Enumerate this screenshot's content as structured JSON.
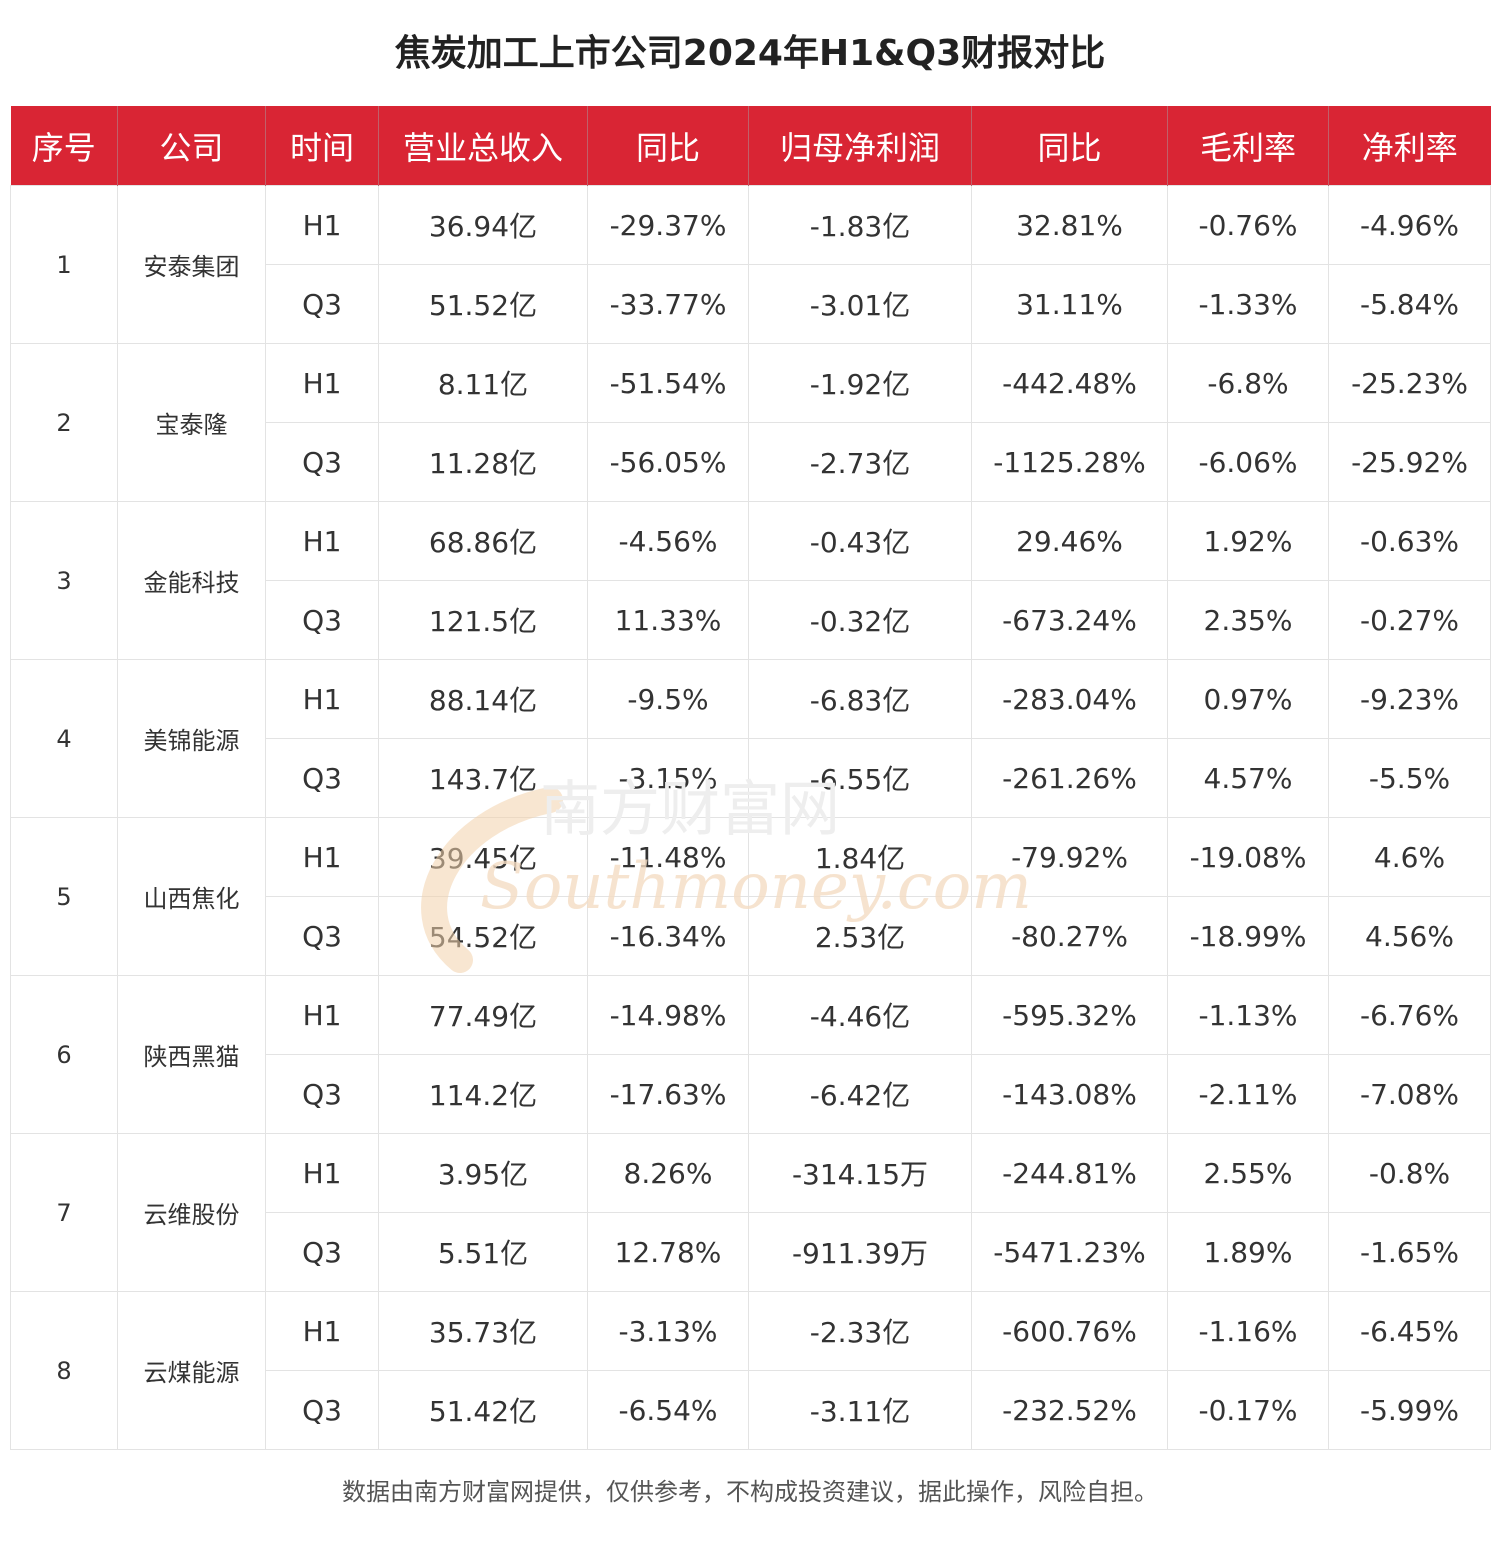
{
  "title": "焦炭加工上市公司2024年H1&Q3财报对比",
  "columns": [
    "序号",
    "公司",
    "时间",
    "营业总收入",
    "同比",
    "归母净利润",
    "同比",
    "毛利率",
    "净利率"
  ],
  "companies": [
    {
      "seq": "1",
      "name": "安泰集团",
      "rows": [
        {
          "period": "H1",
          "revenue": "36.94亿",
          "revenue_yoy": "-29.37%",
          "net_profit": "-1.83亿",
          "profit_yoy": "32.81%",
          "gross_margin": "-0.76%",
          "net_margin": "-4.96%"
        },
        {
          "period": "Q3",
          "revenue": "51.52亿",
          "revenue_yoy": "-33.77%",
          "net_profit": "-3.01亿",
          "profit_yoy": "31.11%",
          "gross_margin": "-1.33%",
          "net_margin": "-5.84%"
        }
      ]
    },
    {
      "seq": "2",
      "name": "宝泰隆",
      "rows": [
        {
          "period": "H1",
          "revenue": "8.11亿",
          "revenue_yoy": "-51.54%",
          "net_profit": "-1.92亿",
          "profit_yoy": "-442.48%",
          "gross_margin": "-6.8%",
          "net_margin": "-25.23%"
        },
        {
          "period": "Q3",
          "revenue": "11.28亿",
          "revenue_yoy": "-56.05%",
          "net_profit": "-2.73亿",
          "profit_yoy": "-1125.28%",
          "gross_margin": "-6.06%",
          "net_margin": "-25.92%"
        }
      ]
    },
    {
      "seq": "3",
      "name": "金能科技",
      "rows": [
        {
          "period": "H1",
          "revenue": "68.86亿",
          "revenue_yoy": "-4.56%",
          "net_profit": "-0.43亿",
          "profit_yoy": "29.46%",
          "gross_margin": "1.92%",
          "net_margin": "-0.63%"
        },
        {
          "period": "Q3",
          "revenue": "121.5亿",
          "revenue_yoy": "11.33%",
          "net_profit": "-0.32亿",
          "profit_yoy": "-673.24%",
          "gross_margin": "2.35%",
          "net_margin": "-0.27%"
        }
      ]
    },
    {
      "seq": "4",
      "name": "美锦能源",
      "rows": [
        {
          "period": "H1",
          "revenue": "88.14亿",
          "revenue_yoy": "-9.5%",
          "net_profit": "-6.83亿",
          "profit_yoy": "-283.04%",
          "gross_margin": "0.97%",
          "net_margin": "-9.23%"
        },
        {
          "period": "Q3",
          "revenue": "143.7亿",
          "revenue_yoy": "-3.15%",
          "net_profit": "-6.55亿",
          "profit_yoy": "-261.26%",
          "gross_margin": "4.57%",
          "net_margin": "-5.5%"
        }
      ]
    },
    {
      "seq": "5",
      "name": "山西焦化",
      "rows": [
        {
          "period": "H1",
          "revenue": "39.45亿",
          "revenue_yoy": "-11.48%",
          "net_profit": "1.84亿",
          "profit_yoy": "-79.92%",
          "gross_margin": "-19.08%",
          "net_margin": "4.6%"
        },
        {
          "period": "Q3",
          "revenue": "54.52亿",
          "revenue_yoy": "-16.34%",
          "net_profit": "2.53亿",
          "profit_yoy": "-80.27%",
          "gross_margin": "-18.99%",
          "net_margin": "4.56%"
        }
      ]
    },
    {
      "seq": "6",
      "name": "陕西黑猫",
      "rows": [
        {
          "period": "H1",
          "revenue": "77.49亿",
          "revenue_yoy": "-14.98%",
          "net_profit": "-4.46亿",
          "profit_yoy": "-595.32%",
          "gross_margin": "-1.13%",
          "net_margin": "-6.76%"
        },
        {
          "period": "Q3",
          "revenue": "114.2亿",
          "revenue_yoy": "-17.63%",
          "net_profit": "-6.42亿",
          "profit_yoy": "-143.08%",
          "gross_margin": "-2.11%",
          "net_margin": "-7.08%"
        }
      ]
    },
    {
      "seq": "7",
      "name": "云维股份",
      "rows": [
        {
          "period": "H1",
          "revenue": "3.95亿",
          "revenue_yoy": "8.26%",
          "net_profit": "-314.15万",
          "profit_yoy": "-244.81%",
          "gross_margin": "2.55%",
          "net_margin": "-0.8%"
        },
        {
          "period": "Q3",
          "revenue": "5.51亿",
          "revenue_yoy": "12.78%",
          "net_profit": "-911.39万",
          "profit_yoy": "-5471.23%",
          "gross_margin": "1.89%",
          "net_margin": "-1.65%"
        }
      ]
    },
    {
      "seq": "8",
      "name": "云煤能源",
      "rows": [
        {
          "period": "H1",
          "revenue": "35.73亿",
          "revenue_yoy": "-3.13%",
          "net_profit": "-2.33亿",
          "profit_yoy": "-600.76%",
          "gross_margin": "-1.16%",
          "net_margin": "-6.45%"
        },
        {
          "period": "Q3",
          "revenue": "51.42亿",
          "revenue_yoy": "-6.54%",
          "net_profit": "-3.11亿",
          "profit_yoy": "-232.52%",
          "gross_margin": "-0.17%",
          "net_margin": "-5.99%"
        }
      ]
    }
  ],
  "watermark": {
    "cn": "南方财富网",
    "en": "Southmoney.com"
  },
  "footer": "数据由南方财富网提供，仅供参考，不构成投资建议，据此操作，风险自担。",
  "colors": {
    "header_bg": "#d92534",
    "header_text": "#ffffff",
    "border": "#e3e3e3",
    "watermark": "#f0c9a0"
  }
}
